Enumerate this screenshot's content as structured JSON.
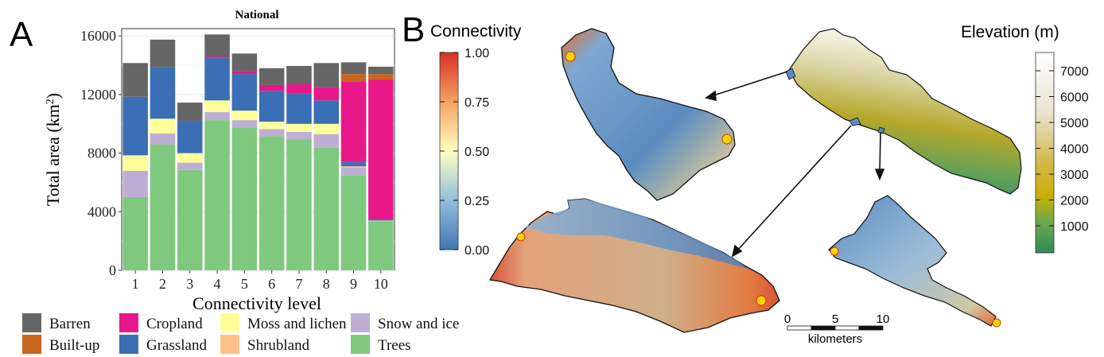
{
  "panel_a_letter": "A",
  "panel_b_letter": "B",
  "colors": {
    "Barren": "#666666",
    "Built-up": "#c8651c",
    "Cropland": "#e8178a",
    "Grassland": "#3a6fb5",
    "Shrubland": "#fdc086",
    "Moss and lichen": "#ffff99",
    "Snow and ice": "#beaed4",
    "Trees": "#7fc97f"
  },
  "chart_data": {
    "type": "bar",
    "stacked": true,
    "title": "National",
    "xlabel": "Connectivity level",
    "ylabel": "Total area (km²)",
    "ylim": [
      0,
      16500
    ],
    "yticks": [
      0,
      4000,
      8000,
      12000,
      16000
    ],
    "grid": true,
    "legend_position": "bottom",
    "categories": [
      "1",
      "2",
      "3",
      "4",
      "5",
      "6",
      "7",
      "8",
      "9",
      "10"
    ],
    "series": [
      {
        "name": "Trees",
        "values": [
          5000,
          8600,
          6850,
          10250,
          9750,
          9150,
          8950,
          8400,
          6500,
          3350
        ]
      },
      {
        "name": "Snow and ice",
        "values": [
          1800,
          750,
          500,
          550,
          500,
          500,
          500,
          900,
          500,
          0
        ]
      },
      {
        "name": "Moss and lichen",
        "values": [
          1050,
          1000,
          650,
          800,
          650,
          500,
          550,
          700,
          0,
          0
        ]
      },
      {
        "name": "Shrubland",
        "values": [
          0,
          0,
          0,
          0,
          0,
          0,
          0,
          0,
          100,
          50
        ]
      },
      {
        "name": "Grassland",
        "values": [
          4000,
          3500,
          2200,
          2900,
          2500,
          2100,
          2100,
          1600,
          300,
          100
        ]
      },
      {
        "name": "Cropland",
        "values": [
          0,
          0,
          0,
          100,
          200,
          400,
          600,
          900,
          5500,
          9500
        ]
      },
      {
        "name": "Built-up",
        "values": [
          0,
          0,
          0,
          0,
          0,
          0,
          0,
          0,
          500,
          400
        ]
      },
      {
        "name": "Barren",
        "values": [
          2300,
          1900,
          1250,
          1500,
          1200,
          1150,
          1250,
          1650,
          800,
          500
        ]
      }
    ],
    "legend_order": [
      "Barren",
      "Built-up",
      "Cropland",
      "Grassland",
      "Moss and lichen",
      "Shrubland",
      "Snow and ice",
      "Trees"
    ]
  },
  "connectivity_legend": {
    "title": "Connectivity",
    "ticks": [
      "1.00",
      "0.75",
      "0.50",
      "0.25",
      "0.00"
    ]
  },
  "elevation_legend": {
    "title": "Elevation (m)",
    "ticks": [
      "7000",
      "6000",
      "5000",
      "4000",
      "3000",
      "2000",
      "1000"
    ]
  },
  "scalebar": {
    "ticks": [
      "0",
      "5",
      "10"
    ],
    "unit": "kilometers"
  }
}
